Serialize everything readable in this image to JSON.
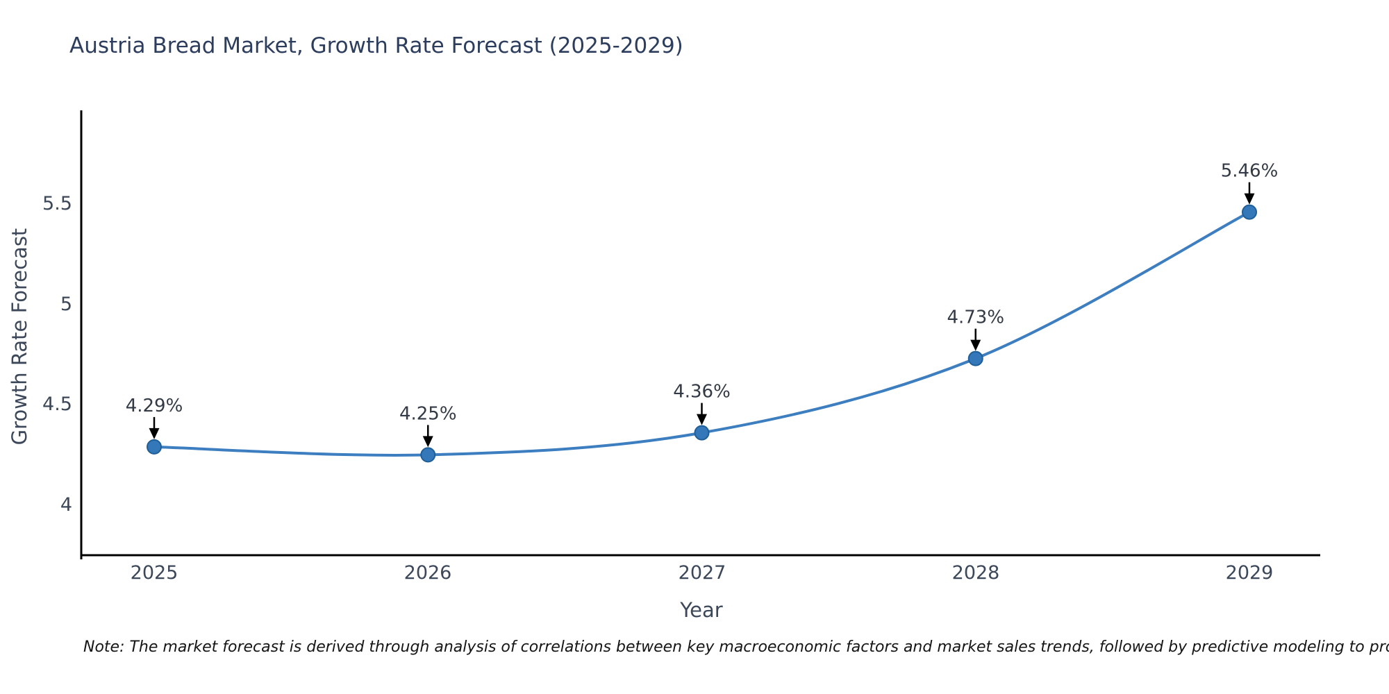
{
  "chart_data": {
    "type": "line",
    "title": "Austria Bread Market, Growth Rate Forecast (2025-2029)",
    "xlabel": "Year",
    "ylabel": "Growth Rate Forecast",
    "categories": [
      "2025",
      "2026",
      "2027",
      "2028",
      "2029"
    ],
    "series": [
      {
        "name": "Growth Rate Forecast",
        "values": [
          4.29,
          4.25,
          4.36,
          4.73,
          5.46
        ],
        "point_labels": [
          "4.29%",
          "4.25%",
          "4.36%",
          "4.73%",
          "5.46%"
        ]
      }
    ],
    "yticks": [
      4,
      4.5,
      5,
      5.5
    ],
    "ytick_labels": [
      "4",
      "4.5",
      "5",
      "5.5"
    ],
    "ylim": [
      3.75,
      5.97
    ],
    "grid": false,
    "legend_position": "none",
    "annotation_style": "down-arrow-to-point",
    "colors": {
      "line": "#3c7ebf",
      "marker_fill": "#3478ba",
      "marker_edge": "#205e97",
      "arrow": "#000000",
      "spine": "#000000",
      "title_text": "#2c3d5d",
      "axis_text": "#3c4859",
      "annotation_text": "#333a45"
    }
  },
  "note": {
    "text": "Note: The market forecast is derived through analysis of correlations between key macroeconomic factors and market sales trends, followed by predictive modeling to project future sales"
  }
}
